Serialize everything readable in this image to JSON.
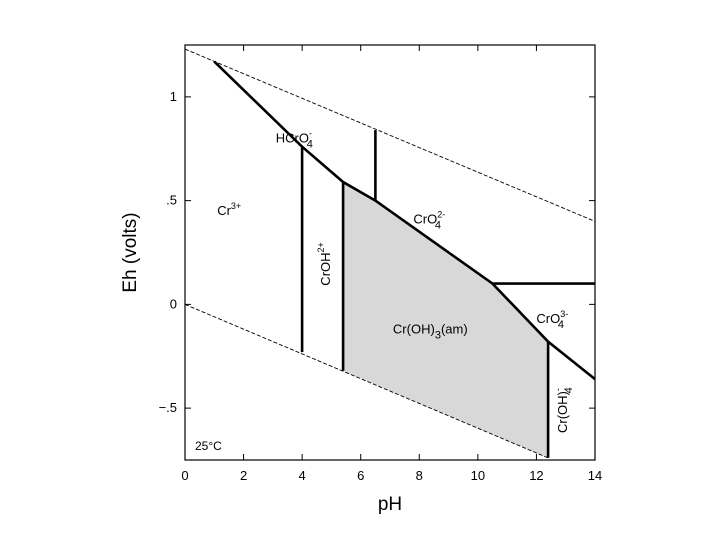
{
  "diagram": {
    "x_axis": {
      "label": "pH",
      "range": [
        0,
        14
      ],
      "ticks": [
        {
          "value": 0,
          "label": "0"
        },
        {
          "value": 2,
          "label": "2"
        },
        {
          "value": 4,
          "label": "4"
        },
        {
          "value": 6,
          "label": "6"
        },
        {
          "value": 8,
          "label": "8"
        },
        {
          "value": 10,
          "label": "10"
        },
        {
          "value": 12,
          "label": "12"
        },
        {
          "value": 14,
          "label": "14"
        }
      ]
    },
    "y_axis": {
      "label": "Eh (volts)",
      "range": [
        -0.75,
        1.25
      ],
      "ticks": [
        {
          "value": 1,
          "label": "1"
        },
        {
          "value": 0.5,
          "label": ".5"
        },
        {
          "value": 0,
          "label": "0"
        },
        {
          "value": -0.5,
          "label": "−.5"
        }
      ]
    },
    "temperature": "25°C",
    "water_stability_lines": [
      [
        [
          0,
          1.23
        ],
        [
          14,
          0.4
        ]
      ],
      [
        [
          0,
          0.0
        ],
        [
          12.4,
          -0.74
        ]
      ]
    ],
    "boundaries": [
      [
        [
          1.0,
          1.17
        ],
        [
          4.0,
          0.76
        ],
        [
          5.4,
          0.59
        ],
        [
          6.5,
          0.5
        ],
        [
          10.5,
          0.1
        ],
        [
          12.4,
          -0.18
        ],
        [
          14,
          -0.36
        ]
      ],
      [
        [
          4.0,
          0.76
        ],
        [
          4.0,
          -0.23
        ]
      ],
      [
        [
          5.4,
          0.59
        ],
        [
          5.4,
          -0.32
        ]
      ],
      [
        [
          6.5,
          0.5
        ],
        [
          6.5,
          0.84
        ]
      ],
      [
        [
          10.5,
          0.1
        ],
        [
          14,
          0.1
        ]
      ],
      [
        [
          12.4,
          -0.18
        ],
        [
          12.4,
          -0.74
        ]
      ]
    ],
    "shaded_region": [
      [
        5.4,
        0.59
      ],
      [
        6.5,
        0.5
      ],
      [
        10.5,
        0.1
      ],
      [
        12.4,
        -0.18
      ],
      [
        12.4,
        -0.74
      ],
      [
        5.4,
        -0.32
      ]
    ],
    "species": [
      {
        "base": "Cr",
        "sub": "",
        "sup": "3+",
        "pH": 1.1,
        "Eh": 0.43
      },
      {
        "base": "HCrO",
        "sub": "4",
        "sup": "-",
        "pH": 3.1,
        "Eh": 0.78
      },
      {
        "base": "CrO",
        "sub": "4",
        "sup": "2-",
        "pH": 7.8,
        "Eh": 0.39
      },
      {
        "base": "CrO",
        "sub": "4",
        "sup": "3-",
        "pH": 12.0,
        "Eh": -0.09
      },
      {
        "base": "Cr(OH)",
        "sub": "3",
        "sup": "",
        "suffix": "(am)",
        "pH": 7.1,
        "Eh": -0.14
      }
    ],
    "rotated_species": [
      {
        "base": "CrOH",
        "sub": "",
        "sup": "2+",
        "pH": 4.95,
        "Eh": 0.09
      },
      {
        "base": "Cr(OH)",
        "sub": "4",
        "sup": "-",
        "pH": 13.05,
        "Eh": -0.62
      }
    ]
  }
}
